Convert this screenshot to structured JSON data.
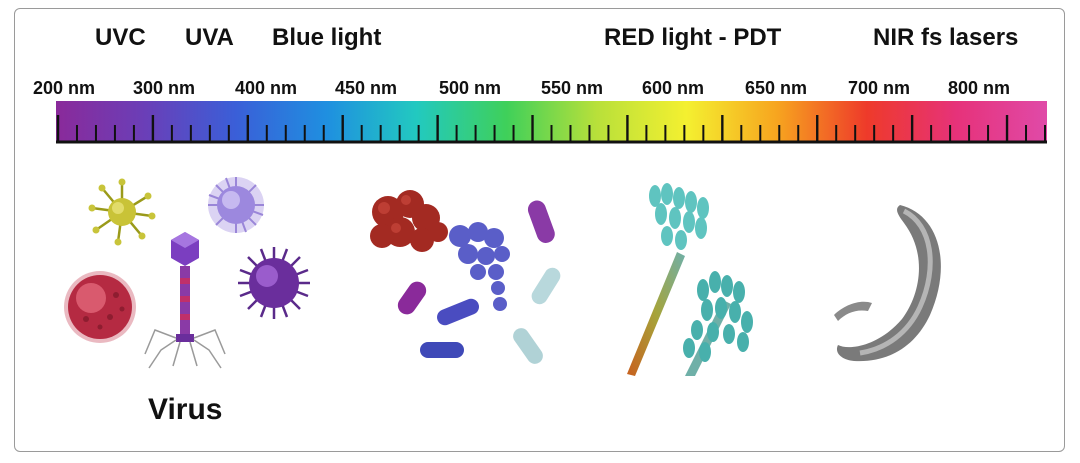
{
  "bands": [
    {
      "label": "UVC"
    },
    {
      "label": "UVA"
    },
    {
      "label": "Blue light"
    },
    {
      "label": "RED light - PDT"
    },
    {
      "label": "NIR fs lasers"
    }
  ],
  "wavelengths": [
    {
      "label": "200 nm"
    },
    {
      "label": "300 nm"
    },
    {
      "label": "400 nm"
    },
    {
      "label": "450 nm"
    },
    {
      "label": "500 nm"
    },
    {
      "label": "550 nm"
    },
    {
      "label": "600 nm"
    },
    {
      "label": "650 nm"
    },
    {
      "label": "700 nm"
    },
    {
      "label": "800 nm"
    }
  ],
  "spectrum_colors": [
    "#8a2a9a",
    "#6a3fb8",
    "#3a5fd8",
    "#1f8fe0",
    "#22c9c0",
    "#3fd05a",
    "#b8e03a",
    "#f4f030",
    "#f7a51f",
    "#ee3a2a",
    "#e6327a",
    "#e04aa8"
  ],
  "organisms": {
    "virus_label": "Virus",
    "groups": [
      "virus-group",
      "bacteria-group",
      "fungi-group",
      "parasite-group"
    ]
  }
}
